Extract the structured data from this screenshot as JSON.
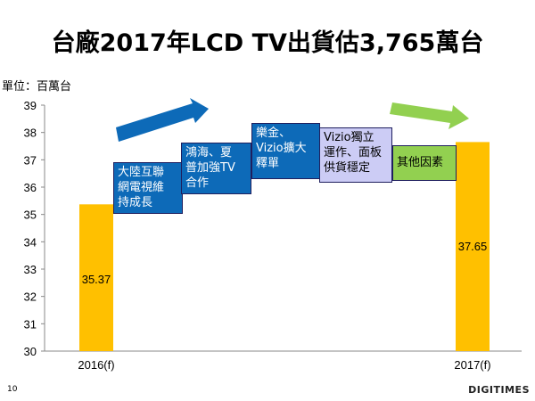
{
  "title": "台廠2017年LCD TV出貨估3,765萬台",
  "unit_label": "單位：百萬台",
  "page_number": "10",
  "logo": "DIGITIMES",
  "colors": {
    "bar": "#ffc000",
    "box_blue": "#0d6ab8",
    "box_lavender": "#ccccf5",
    "box_green": "#92d050",
    "arrow_blue": "#0d6ab8",
    "arrow_green": "#92d050"
  },
  "factors": [
    {
      "text": "大陸互聯\n網電視維\n持成長",
      "style": "blue"
    },
    {
      "text": "鴻海、夏\n普加強TV\n合作",
      "style": "blue"
    },
    {
      "text": "樂金、\nVizio擴大\n釋單",
      "style": "blue"
    },
    {
      "text": "Vizio獨立\n運作、面板\n供貨穩定",
      "style": "lav"
    },
    {
      "text": "其他因素",
      "style": "green"
    }
  ],
  "chart_data": {
    "type": "bar",
    "categories": [
      "2016(f)",
      "2017(f)"
    ],
    "values": [
      35.37,
      37.65
    ],
    "data_labels": [
      "35.37",
      "37.65"
    ],
    "ylim": [
      30,
      39
    ],
    "yticks": [
      "30",
      "31",
      "32",
      "33",
      "34",
      "35",
      "36",
      "37",
      "38",
      "39"
    ],
    "ylabel": "單位：百萬台",
    "xlabel": "",
    "grid": false,
    "legend": "none"
  }
}
